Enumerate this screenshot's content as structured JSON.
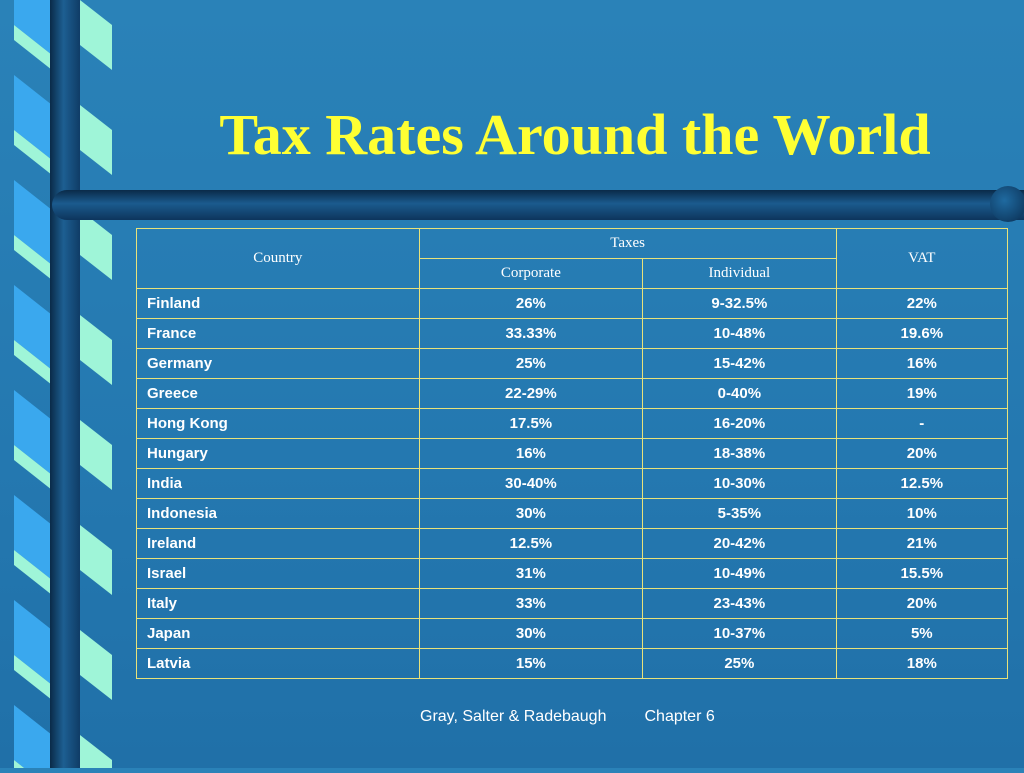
{
  "slide": {
    "title": "Tax Rates Around the World",
    "footer_left": "Gray, Salter & Radebaugh",
    "footer_right": "Chapter 6"
  },
  "table": {
    "headers": {
      "country": "Country",
      "taxes": "Taxes",
      "corporate": "Corporate",
      "individual": "Individual",
      "vat": "VAT"
    },
    "rows": [
      {
        "country": "Finland",
        "corporate": "26%",
        "individual": "9-32.5%",
        "vat": "22%"
      },
      {
        "country": "France",
        "corporate": "33.33%",
        "individual": "10-48%",
        "vat": "19.6%"
      },
      {
        "country": "Germany",
        "corporate": "25%",
        "individual": "15-42%",
        "vat": "16%"
      },
      {
        "country": "Greece",
        "corporate": "22-29%",
        "individual": "0-40%",
        "vat": "19%"
      },
      {
        "country": "Hong Kong",
        "corporate": "17.5%",
        "individual": "16-20%",
        "vat": "-"
      },
      {
        "country": "Hungary",
        "corporate": "16%",
        "individual": "18-38%",
        "vat": "20%"
      },
      {
        "country": "India",
        "corporate": "30-40%",
        "individual": "10-30%",
        "vat": "12.5%"
      },
      {
        "country": "Indonesia",
        "corporate": "30%",
        "individual": "5-35%",
        "vat": "10%"
      },
      {
        "country": "Ireland",
        "corporate": "12.5%",
        "individual": "20-42%",
        "vat": "21%"
      },
      {
        "country": "Israel",
        "corporate": "31%",
        "individual": "10-49%",
        "vat": "15.5%"
      },
      {
        "country": "Italy",
        "corporate": "33%",
        "individual": "23-43%",
        "vat": "20%"
      },
      {
        "country": "Japan",
        "corporate": "30%",
        "individual": "10-37%",
        "vat": "5%"
      },
      {
        "country": "Latvia",
        "corporate": "15%",
        "individual": "25%",
        "vat": "18%"
      }
    ]
  },
  "colors": {
    "background": "#2478b0",
    "title": "#ffff33",
    "table_border": "#e8e27a",
    "ribbon_light": "#9ff5d8",
    "ribbon_blue": "#3aa8ee"
  }
}
